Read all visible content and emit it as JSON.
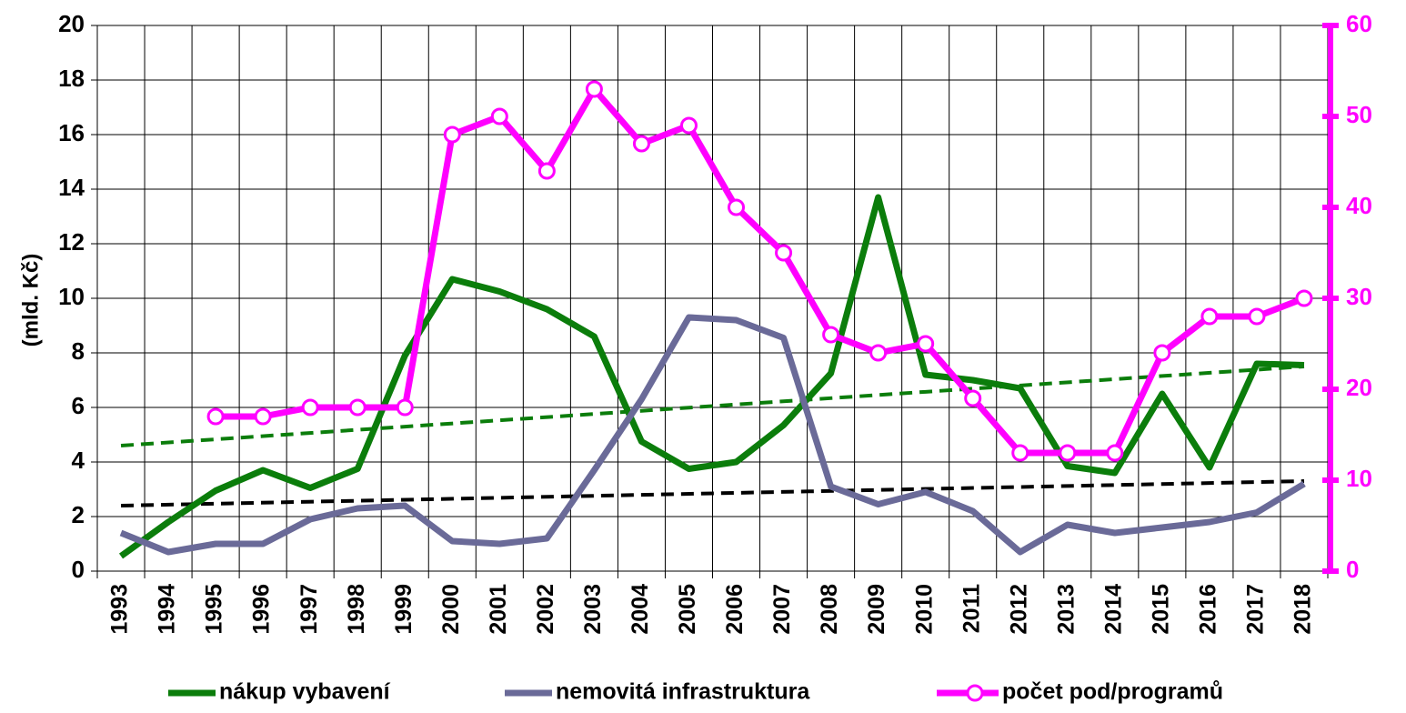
{
  "chart_data": {
    "type": "line",
    "y_label": "(mld. Kč)",
    "categories": [
      "1993",
      "1994",
      "1995",
      "1996",
      "1997",
      "1998",
      "1999",
      "2000",
      "2001",
      "2002",
      "2003",
      "2004",
      "2005",
      "2006",
      "2007",
      "2008",
      "2009",
      "2010",
      "2011",
      "2012",
      "2013",
      "2014",
      "2015",
      "2016",
      "2017",
      "2018"
    ],
    "series": [
      {
        "name": "nákup vybavení",
        "color": "#0b7d0b",
        "values": [
          0.55,
          1.8,
          2.95,
          3.7,
          3.05,
          3.75,
          7.9,
          10.7,
          10.25,
          9.6,
          8.6,
          4.75,
          3.75,
          4.0,
          5.35,
          7.25,
          13.7,
          7.2,
          7.0,
          6.7,
          3.85,
          3.6,
          6.5,
          3.8,
          7.6,
          7.55
        ]
      },
      {
        "name": "nemovitá infrastruktura",
        "color": "#6a6a98",
        "values": [
          1.4,
          0.7,
          1.0,
          1.0,
          1.9,
          2.3,
          2.4,
          1.1,
          1.0,
          1.2,
          3.7,
          6.3,
          9.3,
          9.2,
          8.55,
          3.1,
          2.45,
          2.9,
          2.2,
          0.7,
          1.7,
          1.4,
          1.6,
          1.8,
          2.15,
          3.2
        ]
      },
      {
        "name": "počet pod/programů",
        "color": "#ff00ff",
        "axis": "y2",
        "markers": true,
        "values": [
          null,
          null,
          17,
          17,
          18,
          18,
          18,
          48,
          50,
          44,
          53,
          47,
          49,
          40,
          35,
          26,
          24,
          25,
          19,
          13,
          13,
          13,
          24,
          28,
          28,
          30
        ]
      }
    ],
    "trends": [
      {
        "color": "#0b7d0b",
        "values": [
          4.6,
          7.5
        ]
      },
      {
        "color": "#000000",
        "values": [
          2.4,
          3.3
        ]
      }
    ],
    "ylim": [
      0,
      20
    ],
    "yticks": [
      0,
      2,
      4,
      6,
      8,
      10,
      12,
      14,
      16,
      18,
      20
    ],
    "y2lim": [
      0,
      60
    ],
    "y2ticks": [
      0,
      10,
      20,
      30,
      40,
      50,
      60
    ],
    "y2color": "#ff00ff",
    "grid": true
  }
}
